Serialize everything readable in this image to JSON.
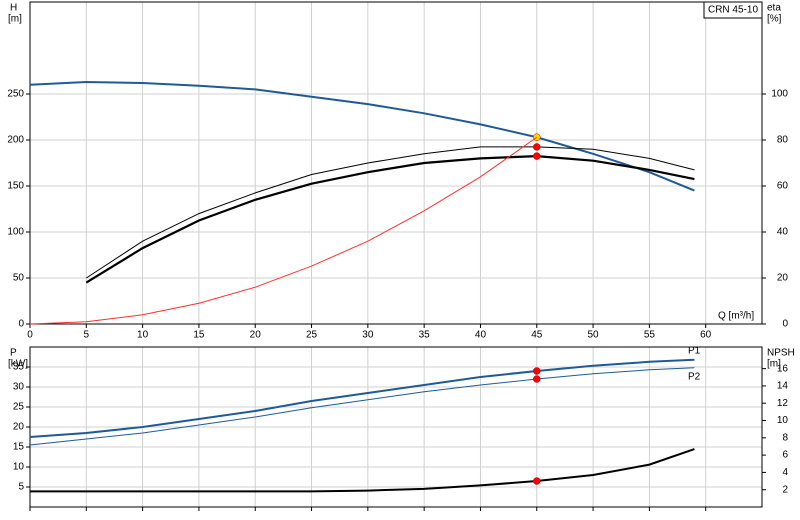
{
  "chart_data": [
    {
      "type": "line",
      "title": "CRN 45-10",
      "ylabel": "H",
      "yunit": "[m]",
      "y2label": "eta",
      "y2unit": "[%]",
      "xlabel": "Q [m³/h]",
      "x": [
        0,
        5,
        10,
        15,
        20,
        25,
        30,
        35,
        40,
        45,
        50,
        55,
        59
      ],
      "xlim": [
        0,
        65
      ],
      "xticks": [
        0,
        5,
        10,
        15,
        20,
        25,
        30,
        35,
        40,
        45,
        50,
        55,
        60
      ],
      "ylim": [
        0,
        350
      ],
      "yticks": [
        0,
        50,
        100,
        150,
        200,
        250
      ],
      "y2lim": [
        0,
        140
      ],
      "y2ticks": [
        0,
        20,
        40,
        60,
        80,
        100
      ],
      "grid": true,
      "duty_point": 45,
      "series": [
        {
          "color": "#1f5a96",
          "width": 2,
          "marker": "#ffd700",
          "values": [
            260,
            263,
            262,
            259,
            255,
            247,
            239,
            229,
            217,
            203,
            185,
            165,
            145
          ]
        },
        {
          "color": "#000000",
          "width": 1,
          "marker": "#ff0000",
          "axis": "y2",
          "values": [
            null,
            20,
            36,
            48,
            57,
            65,
            70,
            74,
            77,
            77,
            76,
            72,
            67
          ]
        },
        {
          "color": "#000000",
          "width": 2.2,
          "marker": "#ff0000",
          "axis": "y2",
          "values": [
            null,
            18,
            33,
            45,
            54,
            61,
            66,
            70,
            72,
            73,
            71,
            67,
            63
          ]
        },
        {
          "color": "#ff3030",
          "width": 1,
          "values": [
            0,
            2.5,
            10,
            22.6,
            40,
            63,
            90,
            123,
            160,
            203,
            null,
            null,
            null
          ]
        }
      ]
    },
    {
      "type": "line",
      "ylabel": "P",
      "yunit": "[kW]",
      "y2label": "NPSH",
      "y2unit": "[m]",
      "x": [
        0,
        5,
        10,
        15,
        20,
        25,
        30,
        35,
        40,
        45,
        50,
        55,
        59
      ],
      "xlim": [
        0,
        65
      ],
      "xticks": [
        0,
        5,
        10,
        15,
        20,
        25,
        30,
        35,
        40,
        45,
        50,
        55,
        60
      ],
      "xtick_labels": false,
      "ylim": [
        0,
        40
      ],
      "yticks": [
        5,
        10,
        15,
        20,
        25,
        30,
        35
      ],
      "y2lim": [
        0,
        18.5
      ],
      "y2ticks": [
        2,
        4,
        6,
        8,
        10,
        12,
        14,
        16
      ],
      "grid": true,
      "duty_point": 45,
      "series": [
        {
          "name": "P1",
          "color": "#1f5a96",
          "width": 2,
          "marker": "#ff0000",
          "values": [
            17.5,
            18.5,
            20,
            22,
            24,
            26.5,
            28.5,
            30.5,
            32.5,
            34,
            35.3,
            36.3,
            36.8
          ]
        },
        {
          "name": "P2",
          "color": "#1f5a96",
          "width": 1,
          "marker": "#ff0000",
          "values": [
            15.5,
            17,
            18.5,
            20.5,
            22.5,
            24.8,
            26.8,
            28.8,
            30.5,
            32,
            33.3,
            34.3,
            34.8
          ]
        },
        {
          "color": "#000000",
          "width": 2,
          "marker": "#ff0000",
          "axis": "y2",
          "values": [
            1.8,
            1.8,
            1.8,
            1.8,
            1.8,
            1.8,
            1.9,
            2.1,
            2.5,
            3.0,
            3.7,
            4.9,
            6.7
          ]
        }
      ]
    }
  ]
}
